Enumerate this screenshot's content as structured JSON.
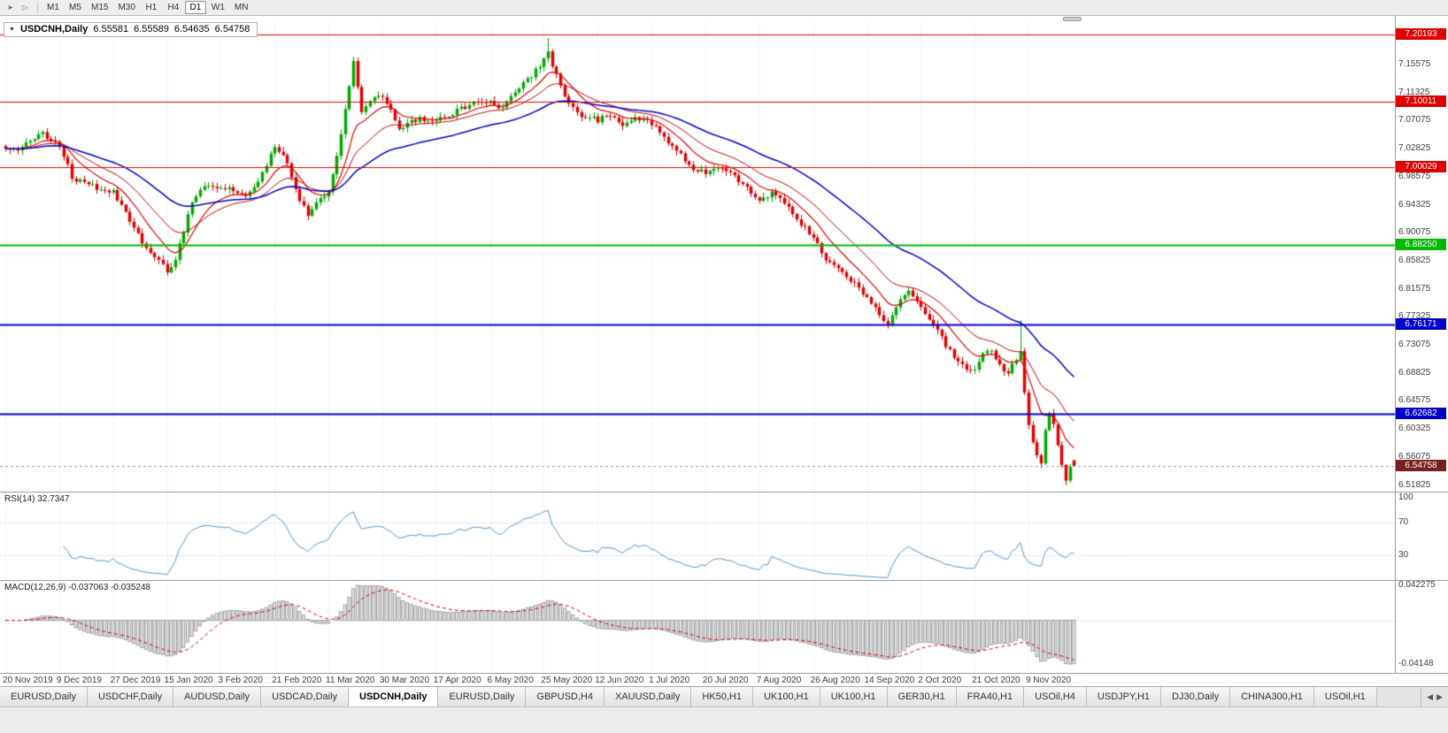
{
  "icons": {
    "dropdown": "▼",
    "auto_scroll": "➤",
    "chart_shift": "▷",
    "tab_scroll_left": "◀",
    "tab_scroll_right": "▶"
  },
  "toolbar": {
    "timeframes": [
      "M1",
      "M5",
      "M15",
      "M30",
      "H1",
      "H4",
      "D1",
      "W1",
      "MN"
    ],
    "active_timeframe": "D1"
  },
  "chart": {
    "title": "USDCNH,Daily",
    "ohlc": {
      "open": "6.55581",
      "high": "6.55589",
      "low": "6.54635",
      "close": "6.54758"
    },
    "price_axis_labels": [
      "7.15575",
      "7.11325",
      "7.07075",
      "7.02825",
      "6.98575",
      "6.94325",
      "6.90075",
      "6.85825",
      "6.81575",
      "6.77325",
      "6.73075",
      "6.68825",
      "6.64575",
      "6.60325",
      "6.56075",
      "6.51825"
    ],
    "date_labels": [
      "20 Nov 2019",
      "9 Dec 2019",
      "27 Dec 2019",
      "15 Jan 2020",
      "3 Feb 2020",
      "21 Feb 2020",
      "11 Mar 2020",
      "30 Mar 2020",
      "17 Apr 2020",
      "6 May 2020",
      "25 May 2020",
      "12 Jun 2020",
      "1 Jul 2020",
      "20 Jul 2020",
      "7 Aug 2020",
      "26 Aug 2020",
      "14 Sep 2020",
      "2 Oct 2020",
      "21 Oct 2020",
      "9 Nov 2020"
    ],
    "levels": [
      {
        "label": "7.20193",
        "value": 7.20193,
        "color": "#E00000",
        "width": 1
      },
      {
        "label": "7.10011",
        "value": 7.10011,
        "color": "#E00000",
        "width": 1
      },
      {
        "label": "7.00029",
        "value": 7.00029,
        "color": "#E00000",
        "width": 1
      },
      {
        "label": "6.88250",
        "value": 6.8825,
        "color": "#00B800",
        "width": 2
      },
      {
        "label": "6.76171",
        "value": 6.76171,
        "color": "#0000C8",
        "width": 2
      },
      {
        "label": "6.62682",
        "value": 6.62682,
        "color": "#0000C8",
        "width": 2
      }
    ],
    "current_price": {
      "label": "6.54758",
      "value": 6.54758,
      "bg": "#7A1F1F"
    }
  },
  "rsi": {
    "label": "RSI(14) 32.7347",
    "period": 14,
    "value": 32.7347,
    "axis_labels": [
      {
        "text": "100",
        "value": 100
      },
      {
        "text": "70",
        "value": 70
      },
      {
        "text": "30",
        "value": 30
      }
    ],
    "level_lines": [
      70,
      30
    ],
    "line_color": "#4f94cd"
  },
  "macd": {
    "label": "MACD(12,26,9) -0.037063 -0.035248",
    "fast": 12,
    "slow": 26,
    "signal": 9,
    "macd_value": -0.037063,
    "signal_value": -0.035248,
    "axis_top": "0.042275",
    "axis_bottom": "-0.04148",
    "signal_color": "#D40000",
    "hist_fill": "#E2E2E2",
    "hist_stroke": "#8C8C8C"
  },
  "tabs": {
    "items": [
      "EURUSD,Daily",
      "USDCHF,Daily",
      "AUDUSD,Daily",
      "USDCAD,Daily",
      "USDCNH,Daily",
      "EURUSD,Daily",
      "GBPUSD,H4",
      "XAUUSD,Daily",
      "HK50,H1",
      "UK100,H1",
      "UK100,H1",
      "GER30,H1",
      "FRA40,H1",
      "USOil,H4",
      "USDJPY,H1",
      "DJ30,Daily",
      "CHINA300,H1",
      "USOil,H1"
    ],
    "active_index": 4
  },
  "chart_data": {
    "type": "candlestick",
    "symbol": "USDCNH",
    "timeframe": "Daily",
    "bar_count": 259,
    "tick_step_bars": 13,
    "up_color": "#00A800",
    "down_color": "#E00000",
    "moving_averages": [
      {
        "period": 10,
        "color": "#E00000",
        "width": 1.2
      },
      {
        "period": 21,
        "color": "#C00000",
        "width": 1
      },
      {
        "period": 45,
        "color": "#0000C8",
        "width": 1.5
      }
    ],
    "close_anchors": [
      [
        0,
        7.03
      ],
      [
        3,
        7.022
      ],
      [
        6,
        7.042
      ],
      [
        9,
        7.05
      ],
      [
        13,
        7.032
      ],
      [
        15,
        7.005
      ],
      [
        16,
        6.984
      ],
      [
        20,
        6.976
      ],
      [
        23,
        6.966
      ],
      [
        26,
        6.962
      ],
      [
        29,
        6.934
      ],
      [
        32,
        6.896
      ],
      [
        35,
        6.868
      ],
      [
        39,
        6.844
      ],
      [
        41,
        6.858
      ],
      [
        43,
        6.905
      ],
      [
        45,
        6.948
      ],
      [
        47,
        6.968
      ],
      [
        49,
        6.972
      ],
      [
        52,
        6.969
      ],
      [
        55,
        6.967
      ],
      [
        58,
        6.956
      ],
      [
        61,
        6.976
      ],
      [
        64,
        7.018
      ],
      [
        65,
        7.03
      ],
      [
        67,
        7.022
      ],
      [
        69,
        6.984
      ],
      [
        71,
        6.946
      ],
      [
        73,
        6.93
      ],
      [
        75,
        6.95
      ],
      [
        78,
        6.96
      ],
      [
        80,
        7.015
      ],
      [
        82,
        7.09
      ],
      [
        84,
        7.158
      ],
      [
        85,
        7.118
      ],
      [
        86,
        7.086
      ],
      [
        88,
        7.104
      ],
      [
        91,
        7.11
      ],
      [
        93,
        7.086
      ],
      [
        95,
        7.056
      ],
      [
        97,
        7.066
      ],
      [
        100,
        7.074
      ],
      [
        104,
        7.07
      ],
      [
        107,
        7.08
      ],
      [
        110,
        7.088
      ],
      [
        113,
        7.096
      ],
      [
        117,
        7.1
      ],
      [
        120,
        7.088
      ],
      [
        123,
        7.112
      ],
      [
        126,
        7.132
      ],
      [
        129,
        7.154
      ],
      [
        131,
        7.172
      ],
      [
        133,
        7.14
      ],
      [
        135,
        7.11
      ],
      [
        137,
        7.092
      ],
      [
        139,
        7.08
      ],
      [
        143,
        7.072
      ],
      [
        146,
        7.08
      ],
      [
        149,
        7.066
      ],
      [
        152,
        7.076
      ],
      [
        156,
        7.066
      ],
      [
        159,
        7.046
      ],
      [
        162,
        7.026
      ],
      [
        165,
        7.002
      ],
      [
        169,
        6.99
      ],
      [
        172,
        7.0
      ],
      [
        175,
        6.99
      ],
      [
        178,
        6.976
      ],
      [
        182,
        6.95
      ],
      [
        185,
        6.96
      ],
      [
        188,
        6.946
      ],
      [
        191,
        6.918
      ],
      [
        195,
        6.896
      ],
      [
        198,
        6.86
      ],
      [
        201,
        6.844
      ],
      [
        204,
        6.83
      ],
      [
        208,
        6.8
      ],
      [
        211,
        6.776
      ],
      [
        213,
        6.764
      ],
      [
        215,
        6.79
      ],
      [
        218,
        6.81
      ],
      [
        221,
        6.792
      ],
      [
        224,
        6.76
      ],
      [
        227,
        6.73
      ],
      [
        230,
        6.706
      ],
      [
        232,
        6.696
      ],
      [
        234,
        6.694
      ],
      [
        236,
        6.716
      ],
      [
        238,
        6.722
      ],
      [
        240,
        6.698
      ],
      [
        242,
        6.69
      ],
      [
        244,
        6.71
      ],
      [
        245,
        6.722
      ],
      [
        246,
        6.66
      ],
      [
        247,
        6.61
      ],
      [
        248,
        6.585
      ],
      [
        249,
        6.565
      ],
      [
        250,
        6.552
      ],
      [
        251,
        6.6
      ],
      [
        252,
        6.628
      ],
      [
        253,
        6.612
      ],
      [
        254,
        6.58
      ],
      [
        255,
        6.548
      ],
      [
        256,
        6.526
      ],
      [
        257,
        6.546
      ],
      [
        258,
        6.552
      ]
    ],
    "spikes": [
      {
        "bar": 39,
        "type": "low",
        "price": 6.838
      },
      {
        "bar": 84,
        "type": "high",
        "price": 7.165
      },
      {
        "bar": 131,
        "type": "high",
        "price": 7.196
      },
      {
        "bar": 245,
        "type": "high",
        "price": 6.768
      },
      {
        "bar": 250,
        "type": "low",
        "price": 6.545
      },
      {
        "bar": 256,
        "type": "low",
        "price": 6.518
      }
    ]
  }
}
